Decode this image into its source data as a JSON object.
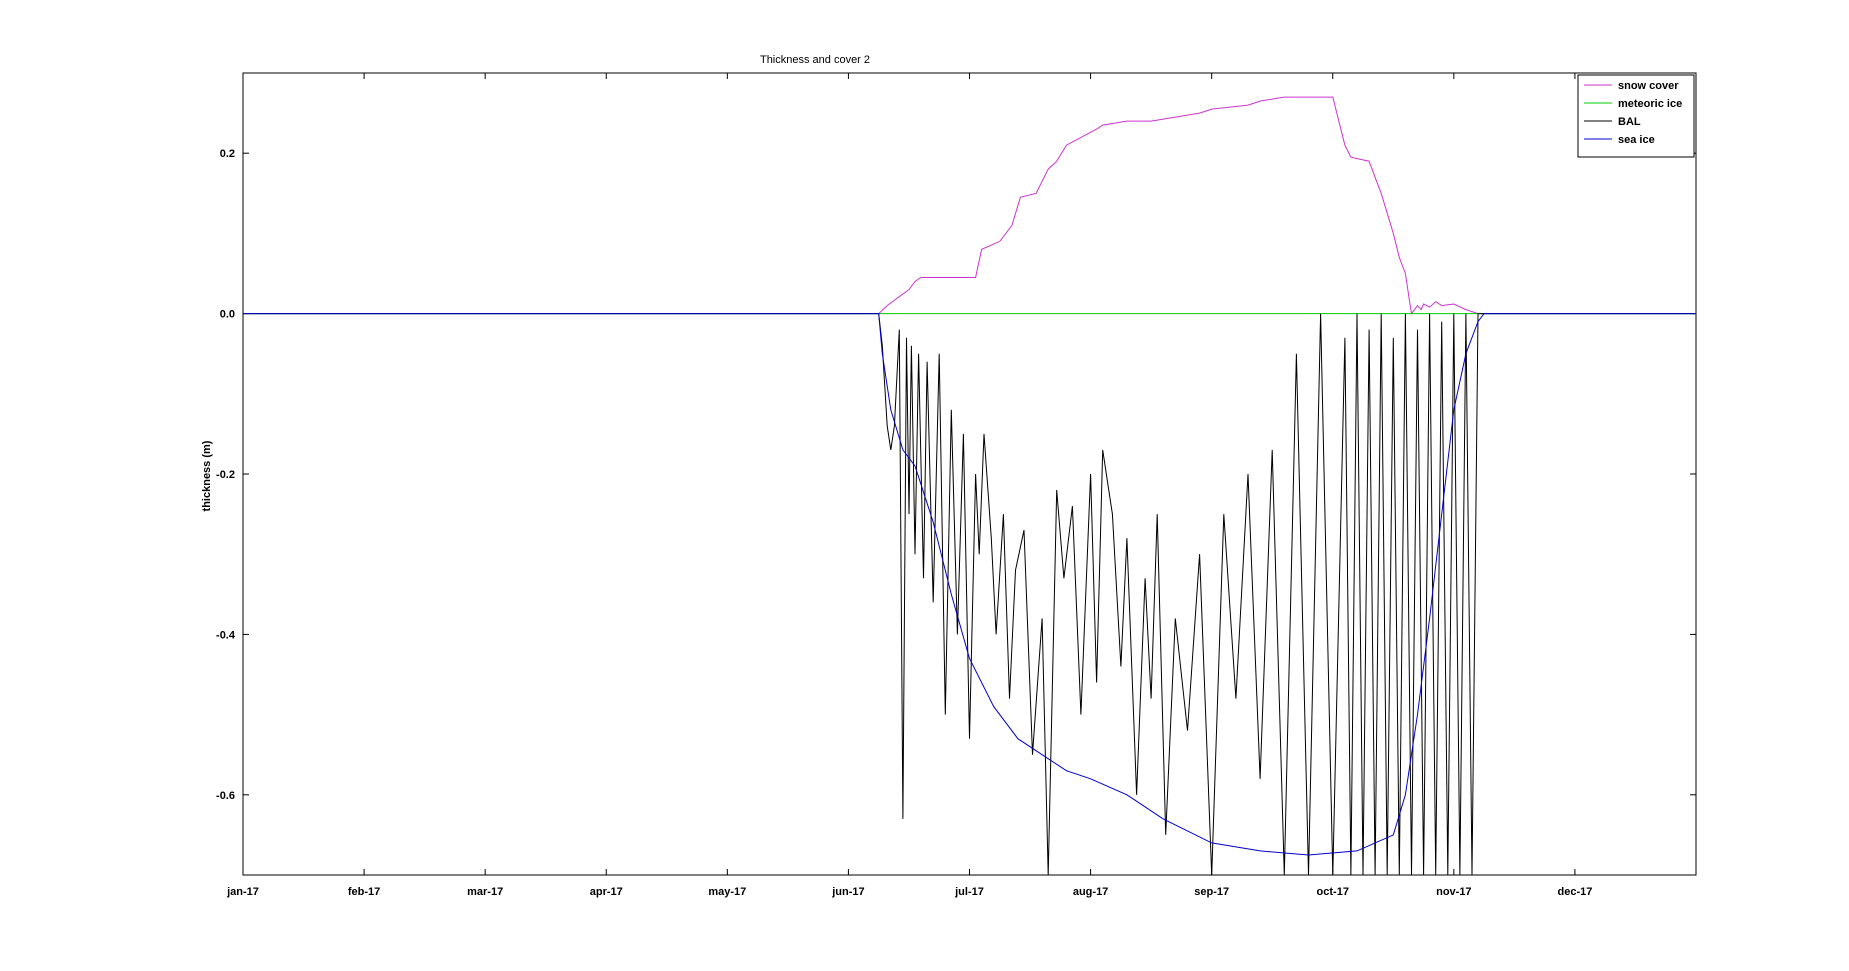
{
  "chart_data": {
    "type": "line",
    "title": "Thickness and cover 2",
    "xlabel": "",
    "ylabel": "thickness (m)",
    "x_unit": "month-index (0 = jan-17, 12 = jan-18)",
    "xlim": [
      0,
      12
    ],
    "ylim": [
      -0.7,
      0.3
    ],
    "x_ticks": [
      0,
      1,
      2,
      3,
      4,
      5,
      6,
      7,
      8,
      9,
      10,
      11
    ],
    "x_tick_labels": [
      "jan-17",
      "feb-17",
      "mar-17",
      "apr-17",
      "may-17",
      "jun-17",
      "jul-17",
      "aug-17",
      "sep-17",
      "oct-17",
      "nov-17",
      "dec-17"
    ],
    "y_ticks": [
      -0.6,
      -0.4,
      -0.2,
      0.0,
      0.2
    ],
    "y_tick_labels": [
      "-0.6",
      "-0.4",
      "-0.2",
      "0.0",
      "0.2"
    ],
    "grid": false,
    "legend_position": "top-right",
    "series": [
      {
        "name": "snow cover",
        "color": "#cc33cc",
        "x": [
          0,
          5.25,
          5.32,
          5.5,
          5.55,
          5.6,
          5.85,
          6.05,
          6.1,
          6.25,
          6.35,
          6.42,
          6.55,
          6.65,
          6.72,
          6.8,
          7.05,
          7.1,
          7.3,
          7.5,
          7.7,
          7.9,
          8.0,
          8.3,
          8.4,
          8.6,
          8.85,
          9.0,
          9.1,
          9.15,
          9.3,
          9.35,
          9.4,
          9.5,
          9.55,
          9.6,
          9.63,
          9.65,
          9.7,
          9.73,
          9.75,
          9.8,
          9.85,
          9.9,
          10.0,
          10.1,
          10.2,
          10.3,
          12
        ],
        "values": [
          0,
          0,
          0.01,
          0.03,
          0.04,
          0.045,
          0.045,
          0.045,
          0.08,
          0.09,
          0.11,
          0.145,
          0.15,
          0.18,
          0.19,
          0.21,
          0.23,
          0.235,
          0.24,
          0.24,
          0.245,
          0.25,
          0.255,
          0.26,
          0.265,
          0.27,
          0.27,
          0.27,
          0.21,
          0.195,
          0.19,
          0.17,
          0.15,
          0.1,
          0.07,
          0.05,
          0.02,
          0.0,
          0.01,
          0.005,
          0.012,
          0.008,
          0.015,
          0.01,
          0.012,
          0.005,
          0,
          0,
          0
        ]
      },
      {
        "name": "meteoric ice",
        "color": "#00cc00",
        "x": [
          0,
          12
        ],
        "values": [
          0,
          0
        ]
      },
      {
        "name": "BAL",
        "color": "#000000",
        "x": [
          0,
          5.25,
          5.28,
          5.32,
          5.35,
          5.38,
          5.42,
          5.45,
          5.48,
          5.5,
          5.52,
          5.55,
          5.58,
          5.62,
          5.65,
          5.7,
          5.75,
          5.8,
          5.85,
          5.9,
          5.95,
          6.0,
          6.05,
          6.08,
          6.12,
          6.18,
          6.22,
          6.28,
          6.33,
          6.38,
          6.45,
          6.52,
          6.6,
          6.65,
          6.72,
          6.78,
          6.85,
          6.92,
          7.0,
          7.05,
          7.1,
          7.18,
          7.25,
          7.3,
          7.38,
          7.45,
          7.5,
          7.55,
          7.62,
          7.7,
          7.8,
          7.9,
          8.0,
          8.1,
          8.2,
          8.3,
          8.4,
          8.5,
          8.6,
          8.7,
          8.8,
          8.9,
          9.0,
          9.1,
          9.15,
          9.2,
          9.25,
          9.3,
          9.35,
          9.4,
          9.45,
          9.5,
          9.55,
          9.6,
          9.65,
          9.7,
          9.75,
          9.8,
          9.85,
          9.9,
          9.95,
          10.0,
          10.05,
          10.1,
          10.15,
          10.2,
          12
        ],
        "values": [
          0,
          0,
          -0.04,
          -0.14,
          -0.17,
          -0.14,
          -0.02,
          -0.63,
          -0.03,
          -0.25,
          -0.04,
          -0.3,
          -0.05,
          -0.33,
          -0.06,
          -0.36,
          -0.05,
          -0.5,
          -0.12,
          -0.4,
          -0.15,
          -0.53,
          -0.2,
          -0.3,
          -0.15,
          -0.28,
          -0.4,
          -0.25,
          -0.48,
          -0.32,
          -0.27,
          -0.55,
          -0.38,
          -0.7,
          -0.22,
          -0.33,
          -0.24,
          -0.5,
          -0.2,
          -0.46,
          -0.17,
          -0.25,
          -0.44,
          -0.28,
          -0.6,
          -0.33,
          -0.48,
          -0.25,
          -0.65,
          -0.38,
          -0.52,
          -0.3,
          -0.7,
          -0.25,
          -0.48,
          -0.2,
          -0.58,
          -0.17,
          -0.7,
          -0.05,
          -0.7,
          0,
          -0.7,
          -0.03,
          -0.7,
          0,
          -0.7,
          -0.02,
          -0.7,
          0,
          -0.7,
          -0.03,
          -0.7,
          0,
          -0.7,
          -0.02,
          -0.7,
          0,
          -0.7,
          -0.01,
          -0.7,
          0,
          -0.7,
          0,
          -0.7,
          0,
          0
        ]
      },
      {
        "name": "sea ice",
        "color": "#0000cc",
        "x": [
          0,
          5.25,
          5.28,
          5.35,
          5.45,
          5.55,
          5.7,
          5.85,
          6.0,
          6.2,
          6.4,
          6.6,
          6.8,
          7.0,
          7.3,
          7.6,
          8.0,
          8.4,
          8.8,
          9.2,
          9.5,
          9.6,
          9.7,
          9.8,
          9.9,
          10.0,
          10.1,
          10.2,
          10.25,
          12
        ],
        "values": [
          0,
          0,
          -0.05,
          -0.12,
          -0.17,
          -0.19,
          -0.26,
          -0.35,
          -0.43,
          -0.49,
          -0.53,
          -0.55,
          -0.57,
          -0.58,
          -0.6,
          -0.63,
          -0.66,
          -0.67,
          -0.675,
          -0.67,
          -0.65,
          -0.6,
          -0.5,
          -0.38,
          -0.25,
          -0.12,
          -0.05,
          -0.01,
          0,
          0
        ]
      }
    ]
  }
}
